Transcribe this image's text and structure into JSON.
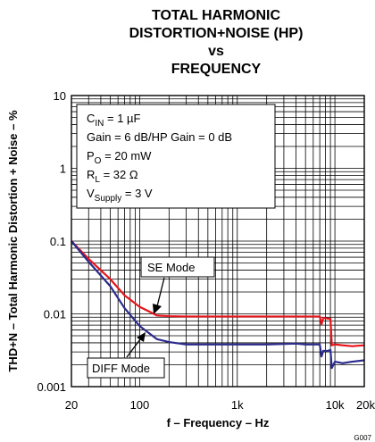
{
  "chart_data": {
    "type": "line",
    "title": [
      "TOTAL HARMONIC",
      "DISTORTION+NOISE (HP)",
      "vs",
      "FREQUENCY"
    ],
    "xlabel": "f – Frequency – Hz",
    "ylabel": "THD+N – Total Harmonic Distortion + Noise – %",
    "x_scale": "log",
    "y_scale": "log",
    "xlim": [
      20,
      20000
    ],
    "ylim": [
      0.001,
      10
    ],
    "x_ticks": [
      {
        "value": 20,
        "label": "20"
      },
      {
        "value": 100,
        "label": "100"
      },
      {
        "value": 1000,
        "label": "1k"
      },
      {
        "value": 10000,
        "label": "10k"
      },
      {
        "value": 20000,
        "label": "20k"
      }
    ],
    "y_ticks": [
      {
        "value": 0.001,
        "label": "0.001"
      },
      {
        "value": 0.01,
        "label": "0.01"
      },
      {
        "value": 0.1,
        "label": "0.1"
      },
      {
        "value": 1,
        "label": "1"
      },
      {
        "value": 10,
        "label": "10"
      }
    ],
    "grid": true,
    "conditions": [
      {
        "main": "C",
        "sub": "IN",
        "rest": " = 1 µF"
      },
      {
        "main": "Gain = 6 dB/HP Gain = 0 dB",
        "sub": "",
        "rest": ""
      },
      {
        "main": "P",
        "sub": "O",
        "rest": " = 20 mW"
      },
      {
        "main": "R",
        "sub": "L",
        "rest": " = 32 Ω"
      },
      {
        "main": "V",
        "sub": "Supply",
        "rest": " = 3 V"
      }
    ],
    "series": [
      {
        "name": "SE Mode",
        "color": "#e8141c",
        "x": [
          20,
          30,
          50,
          70,
          100,
          130,
          150,
          200,
          300,
          500,
          1000,
          2000,
          3000,
          5000,
          7000,
          7300,
          7600,
          8500,
          9000,
          9300,
          10000,
          12000,
          15000,
          20000
        ],
        "y": [
          0.1,
          0.057,
          0.03,
          0.018,
          0.0125,
          0.0105,
          0.0095,
          0.0093,
          0.0092,
          0.0092,
          0.0092,
          0.0092,
          0.0092,
          0.0092,
          0.0092,
          0.0072,
          0.0088,
          0.0086,
          0.0086,
          0.0037,
          0.0038,
          0.0037,
          0.0036,
          0.0037
        ]
      },
      {
        "name": "DIFF Mode",
        "color": "#2b2b8c",
        "x": [
          20,
          30,
          50,
          70,
          100,
          150,
          200,
          300,
          500,
          1000,
          2000,
          4000,
          5000,
          7000,
          7300,
          7600,
          8500,
          9000,
          9300,
          10000,
          12000,
          15000,
          20000
        ],
        "y": [
          0.1,
          0.052,
          0.024,
          0.012,
          0.0068,
          0.0045,
          0.0041,
          0.0038,
          0.0038,
          0.0038,
          0.0038,
          0.0039,
          0.0038,
          0.0038,
          0.0026,
          0.0031,
          0.0031,
          0.0032,
          0.0018,
          0.0022,
          0.0021,
          0.0022,
          0.0023
        ]
      }
    ],
    "annotations": [
      {
        "text": "SE Mode",
        "series": "SE Mode"
      },
      {
        "text": "DIFF Mode",
        "series": "DIFF Mode"
      }
    ],
    "figure_code": "G007"
  }
}
